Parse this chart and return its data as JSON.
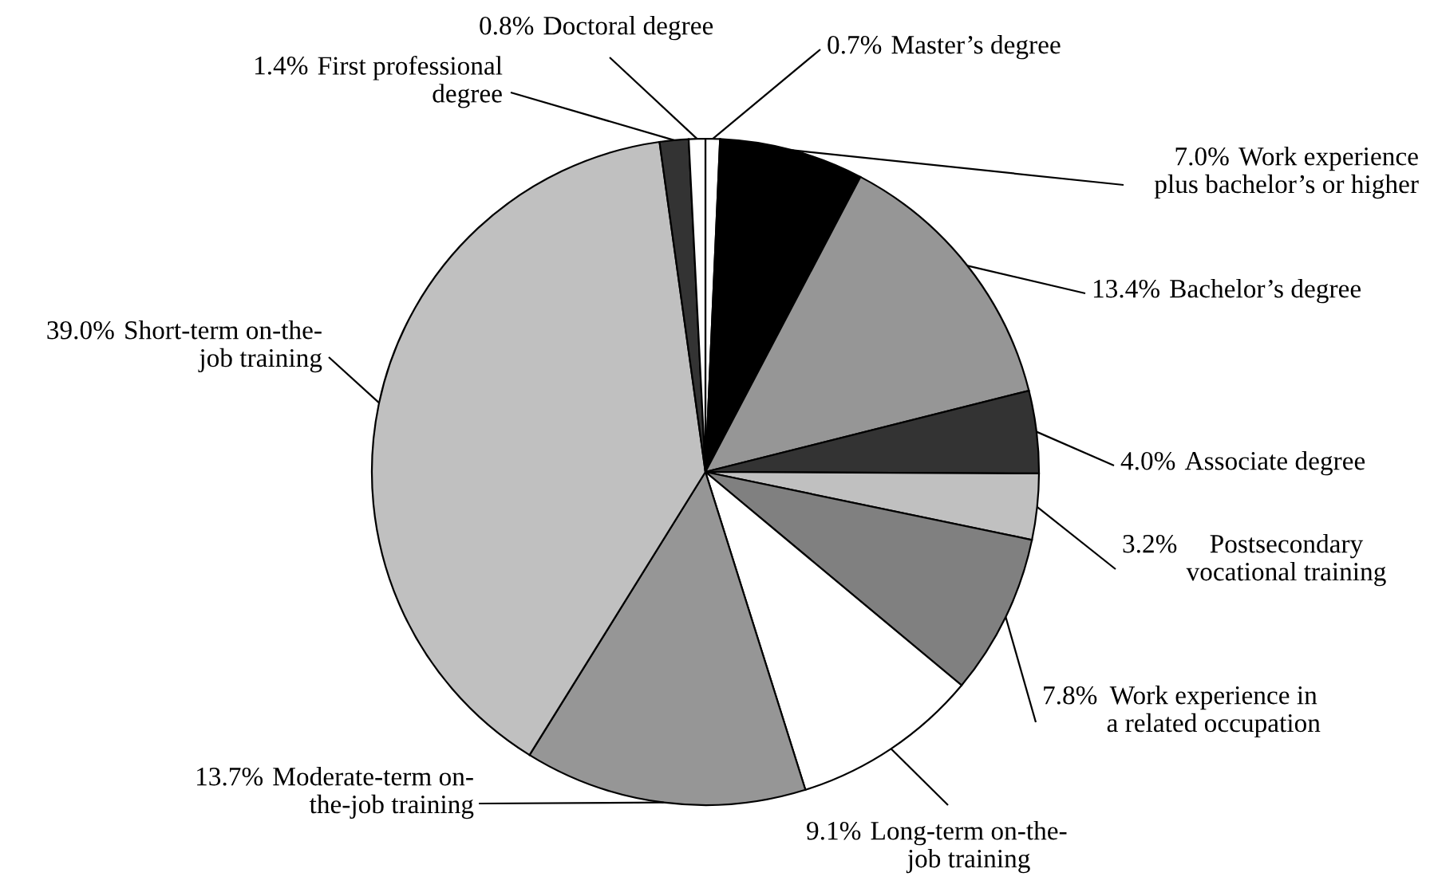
{
  "chart_data": {
    "type": "pie",
    "categories": [
      "Master’s degree",
      "Work experience\nplus bachelor’s or higher",
      "Bachelor’s degree",
      "Associate degree",
      "Postsecondary\nvocational training",
      "Work experience in\na related occupation",
      "Long-term on-the-\njob training",
      "Moderate-term on-\nthe-job training",
      "Short-term on-the-\njob training",
      "First professional\ndegree",
      "Doctoral degree"
    ],
    "values": [
      0.7,
      7.0,
      13.4,
      4.0,
      3.2,
      7.8,
      9.1,
      13.7,
      39.0,
      1.4,
      0.8
    ],
    "value_labels": [
      "0.7%",
      "7.0%",
      "13.4%",
      "4.0%",
      "3.2%",
      "7.8%",
      "9.1%",
      "13.7%",
      "39.0%",
      "1.4%",
      "0.8%"
    ],
    "colors": [
      "#ffffff",
      "#000000",
      "#969696",
      "#333333",
      "#c0c0c0",
      "#808080",
      "#ffffff",
      "#969696",
      "#c0c0c0",
      "#333333",
      "#ffffff"
    ]
  }
}
